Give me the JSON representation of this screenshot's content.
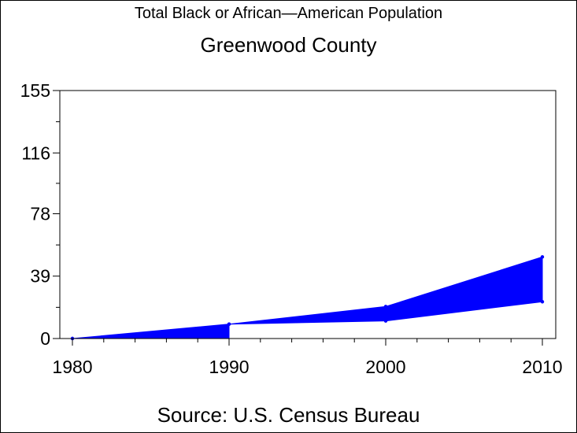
{
  "header": {
    "title": "Total Black or African—American Population",
    "subtitle": "Greenwood County"
  },
  "footer": {
    "source": "Source: U.S. Census Bureau"
  },
  "colors": {
    "fill": "#0000ff",
    "axis": "#000000",
    "background": "#ffffff"
  },
  "chart_data": {
    "type": "area",
    "title": "Total Black or African—American Population",
    "subtitle": "Greenwood County",
    "x": [
      1980,
      1990,
      2000,
      2010
    ],
    "xticks": [
      "1980",
      "1990",
      "2000",
      "2010"
    ],
    "xlim": [
      1980,
      2010
    ],
    "yticks": [
      "0",
      "39",
      "78",
      "116",
      "155"
    ],
    "ylim": [
      0,
      155
    ],
    "series": [
      {
        "values": [
          0,
          9,
          20,
          51
        ]
      },
      {
        "values": [
          0,
          9,
          11,
          23
        ]
      }
    ],
    "grid": false
  }
}
